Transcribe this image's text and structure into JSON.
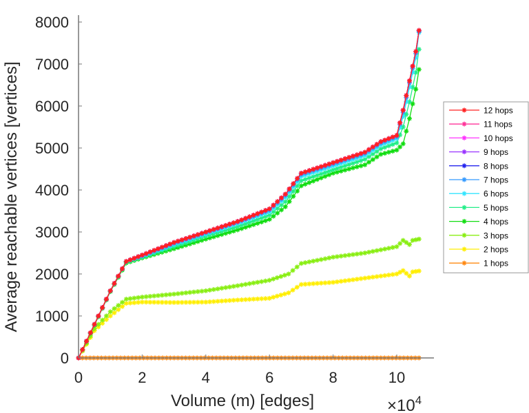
{
  "chart_data": {
    "type": "line",
    "title": "",
    "xlabel": "Volume (m) [edges]",
    "ylabel": "Average reachable vertices [vertices]",
    "x_multiplier_label": "×10",
    "x_multiplier_exponent": "4",
    "xlim": [
      0,
      11.2
    ],
    "ylim": [
      0,
      8000
    ],
    "xticks": [
      0,
      2,
      4,
      6,
      8,
      10
    ],
    "xtick_labels": [
      "0",
      "2",
      "4",
      "6",
      "8",
      "10"
    ],
    "yticks": [
      0,
      1000,
      2000,
      3000,
      4000,
      5000,
      6000,
      7000,
      8000
    ],
    "ytick_labels": [
      "0",
      "1000",
      "2000",
      "3000",
      "4000",
      "5000",
      "6000",
      "7000",
      "8000"
    ],
    "grid": false,
    "legend_position": "right",
    "marker": "asterisk",
    "series": [
      {
        "name": "12 hops",
        "color": "#ff2020",
        "x": [
          0,
          0.5,
          1,
          1.5,
          2,
          3,
          4,
          5,
          6,
          6.5,
          7,
          8,
          9,
          9.5,
          10,
          10.2,
          10.4,
          10.6,
          10.7
        ],
        "y": [
          0,
          800,
          1600,
          2300,
          2450,
          2750,
          3000,
          3250,
          3550,
          3900,
          4400,
          4650,
          4900,
          5150,
          5300,
          5900,
          6600,
          7300,
          7800
        ]
      },
      {
        "name": "11 hops",
        "color": "#ff3399",
        "x": [
          0,
          0.5,
          1,
          1.5,
          2,
          3,
          4,
          5,
          6,
          6.5,
          7,
          8,
          9,
          9.5,
          10,
          10.2,
          10.4,
          10.6,
          10.7
        ],
        "y": [
          0,
          800,
          1600,
          2300,
          2450,
          2750,
          3000,
          3250,
          3550,
          3900,
          4400,
          4650,
          4900,
          5150,
          5300,
          5900,
          6600,
          7300,
          7800
        ]
      },
      {
        "name": "10 hops",
        "color": "#ff33ff",
        "x": [
          0,
          0.5,
          1,
          1.5,
          2,
          3,
          4,
          5,
          6,
          6.5,
          7,
          8,
          9,
          9.5,
          10,
          10.2,
          10.4,
          10.6,
          10.7
        ],
        "y": [
          0,
          800,
          1600,
          2300,
          2450,
          2750,
          3000,
          3250,
          3550,
          3900,
          4400,
          4650,
          4900,
          5150,
          5300,
          5900,
          6600,
          7300,
          7800
        ]
      },
      {
        "name": "9 hops",
        "color": "#9933ff",
        "x": [
          0,
          0.5,
          1,
          1.5,
          2,
          3,
          4,
          5,
          6,
          6.5,
          7,
          8,
          9,
          9.5,
          10,
          10.2,
          10.4,
          10.6,
          10.7
        ],
        "y": [
          0,
          800,
          1600,
          2300,
          2450,
          2750,
          3000,
          3250,
          3550,
          3900,
          4400,
          4650,
          4900,
          5150,
          5300,
          5900,
          6600,
          7300,
          7800
        ]
      },
      {
        "name": "8 hops",
        "color": "#2222ee",
        "x": [
          0,
          0.5,
          1,
          1.5,
          2,
          3,
          4,
          5,
          6,
          6.5,
          7,
          8,
          9,
          9.5,
          10,
          10.2,
          10.4,
          10.6,
          10.7
        ],
        "y": [
          0,
          800,
          1600,
          2300,
          2450,
          2750,
          3000,
          3250,
          3550,
          3900,
          4400,
          4650,
          4900,
          5150,
          5300,
          5900,
          6600,
          7300,
          7800
        ]
      },
      {
        "name": "7 hops",
        "color": "#3399ff",
        "x": [
          0,
          0.5,
          1,
          1.5,
          2,
          3,
          4,
          5,
          6,
          6.5,
          7,
          8,
          9,
          9.5,
          10,
          10.2,
          10.4,
          10.6,
          10.7
        ],
        "y": [
          0,
          800,
          1600,
          2300,
          2430,
          2730,
          2980,
          3230,
          3520,
          3870,
          4370,
          4620,
          4870,
          5120,
          5270,
          5850,
          6550,
          7250,
          7780
        ]
      },
      {
        "name": "6 hops",
        "color": "#33e5ff",
        "x": [
          0,
          0.5,
          1,
          1.5,
          2,
          3,
          4,
          5,
          6,
          6.5,
          7,
          8,
          9,
          9.5,
          10,
          10.2,
          10.4,
          10.6,
          10.7
        ],
        "y": [
          0,
          800,
          1600,
          2300,
          2420,
          2700,
          2950,
          3200,
          3480,
          3820,
          4320,
          4570,
          4820,
          5070,
          5220,
          5750,
          6450,
          7150,
          7750
        ]
      },
      {
        "name": "5 hops",
        "color": "#22ee88",
        "x": [
          0,
          0.5,
          1,
          1.5,
          2,
          3,
          4,
          5,
          6,
          6.5,
          7,
          8,
          9,
          9.5,
          10,
          10.2,
          10.4,
          10.6,
          10.7
        ],
        "y": [
          0,
          790,
          1590,
          2280,
          2400,
          2650,
          2900,
          3130,
          3400,
          3720,
          4220,
          4480,
          4730,
          4980,
          5120,
          5500,
          6100,
          6800,
          7350
        ]
      },
      {
        "name": "4 hops",
        "color": "#11dd11",
        "x": [
          0,
          0.5,
          1,
          1.5,
          2,
          3,
          4,
          5,
          6,
          6.5,
          7,
          8,
          9,
          9.5,
          10,
          10.2,
          10.4,
          10.6,
          10.7
        ],
        "y": [
          0,
          780,
          1580,
          2260,
          2380,
          2600,
          2830,
          3050,
          3300,
          3600,
          4100,
          4400,
          4600,
          4850,
          4950,
          5100,
          5700,
          6400,
          6870
        ]
      },
      {
        "name": "3 hops",
        "color": "#88ee11",
        "x": [
          0,
          0.5,
          1,
          1.5,
          2,
          3,
          4,
          5,
          6,
          6.6,
          7,
          8,
          9,
          10,
          10.2,
          10.4,
          10.5,
          10.7
        ],
        "y": [
          0,
          700,
          1100,
          1400,
          1450,
          1520,
          1600,
          1720,
          1850,
          2000,
          2250,
          2400,
          2500,
          2650,
          2800,
          2700,
          2800,
          2830
        ]
      },
      {
        "name": "2 hops",
        "color": "#ffee00",
        "x": [
          0,
          0.5,
          1,
          1.5,
          2,
          3,
          4,
          5,
          6,
          6.6,
          7,
          8,
          9,
          10,
          10.2,
          10.4,
          10.5,
          10.7
        ],
        "y": [
          0,
          650,
          1000,
          1300,
          1330,
          1320,
          1330,
          1380,
          1420,
          1550,
          1750,
          1800,
          1900,
          2000,
          2080,
          1950,
          2050,
          2070
        ]
      },
      {
        "name": "1 hops",
        "color": "#ff8811",
        "x": [
          0,
          10.7
        ],
        "y": [
          0,
          0
        ]
      }
    ]
  }
}
